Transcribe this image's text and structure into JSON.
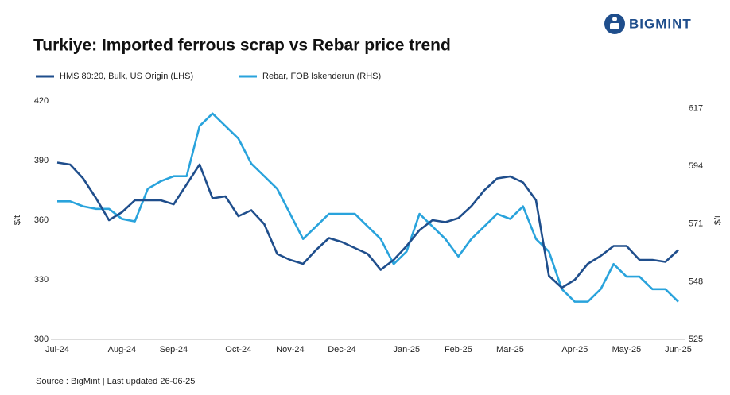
{
  "brand": "BIGMINT",
  "chart_data": {
    "type": "line",
    "title": "Turkiye: Imported ferrous scrap vs Rebar price trend",
    "source": "Source : BigMint | Last updated 26-06-25",
    "ylabel": "$/t",
    "y2label": "$/t",
    "categories": [
      "Jul-24",
      null,
      null,
      null,
      null,
      "Aug-24",
      null,
      null,
      null,
      "Sep-24",
      null,
      null,
      null,
      null,
      "Oct-24",
      null,
      null,
      null,
      "Nov-24",
      null,
      null,
      null,
      "Dec-24",
      null,
      null,
      null,
      null,
      "Jan-25",
      null,
      null,
      null,
      "Feb-25",
      null,
      null,
      null,
      "Mar-25",
      null,
      null,
      null,
      null,
      "Apr-25",
      null,
      null,
      null,
      "May-25",
      null,
      null,
      null,
      "Jun-25"
    ],
    "series": [
      {
        "name": "HMS 80:20, Bulk, US Origin (LHS)",
        "color": "#1f4e8c",
        "values": [
          389,
          388,
          381,
          371,
          360,
          364,
          370,
          370,
          370,
          368,
          378,
          388,
          371,
          372,
          362,
          365,
          358,
          343,
          340,
          338,
          345,
          351,
          349,
          346,
          343,
          335,
          340,
          347,
          355,
          360,
          359,
          361,
          367,
          375,
          381,
          382,
          379,
          370,
          332,
          326,
          330,
          338,
          342,
          347,
          347,
          340,
          340,
          339,
          345
        ]
      },
      {
        "name": "Rebar, FOB Iskenderun (RHS)",
        "color": "#29a3dc",
        "axis": "y2",
        "values": [
          580,
          580,
          578,
          577,
          577,
          573,
          572,
          585,
          588,
          590,
          590,
          610,
          615,
          610,
          605,
          595,
          590,
          585,
          575,
          565,
          570,
          575,
          575,
          575,
          570,
          565,
          555,
          560,
          575,
          570,
          565,
          558,
          565,
          570,
          575,
          573,
          578,
          565,
          560,
          545,
          540,
          540,
          545,
          555,
          550,
          550,
          545,
          545,
          540
        ]
      }
    ],
    "ylim": [
      300,
      420
    ],
    "yticks": [
      300,
      330,
      360,
      390,
      420
    ],
    "y2lim": [
      525,
      620
    ],
    "y2ticks": [
      525,
      548,
      571,
      594,
      617
    ],
    "grid": false,
    "legend": "top-left"
  }
}
